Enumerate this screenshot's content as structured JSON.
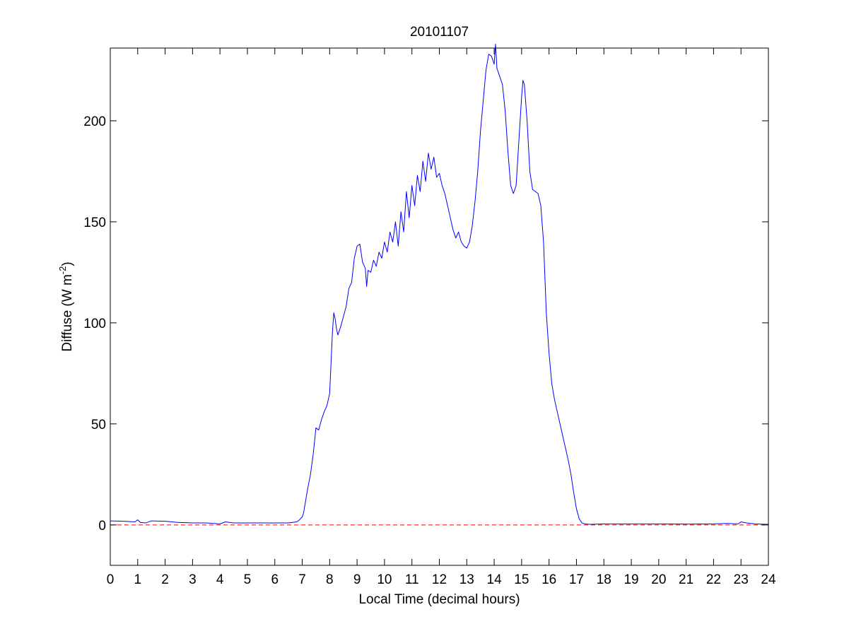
{
  "chart_data": {
    "type": "line",
    "title": "20101107",
    "xlabel": "Local Time (decimal hours)",
    "ylabel": "Diffuse (W m",
    "ylabel_sup": "-2",
    "ylabel_close": ")",
    "xlim": [
      0,
      24
    ],
    "ylim": [
      -20,
      236
    ],
    "xticks": [
      "0",
      "1",
      "2",
      "3",
      "4",
      "5",
      "6",
      "7",
      "8",
      "9",
      "10",
      "11",
      "12",
      "13",
      "14",
      "15",
      "16",
      "17",
      "18",
      "19",
      "20",
      "21",
      "22",
      "23",
      "24"
    ],
    "yticks": [
      "0",
      "50",
      "100",
      "150",
      "200"
    ],
    "grid": false,
    "colors": {
      "series": "#0000ff",
      "reference": "#ff0000"
    },
    "reference_line": {
      "y": 0,
      "style": "dashed"
    },
    "series": [
      {
        "x": [
          0,
          0.5,
          0.9,
          1.0,
          1.1,
          1.3,
          1.5,
          2.0,
          2.5,
          3.0,
          3.5,
          4.0,
          4.2,
          4.5,
          5.0,
          5.5,
          6.0,
          6.5,
          6.8,
          6.9,
          7.0,
          7.05,
          7.1,
          7.2,
          7.3,
          7.4,
          7.5,
          7.6,
          7.7,
          7.8,
          7.9,
          8.0,
          8.05,
          8.1,
          8.15,
          8.2,
          8.25,
          8.3,
          8.4,
          8.5,
          8.6,
          8.7,
          8.8,
          8.9,
          9.0,
          9.1,
          9.2,
          9.3,
          9.35,
          9.4,
          9.5,
          9.6,
          9.7,
          9.8,
          9.9,
          10.0,
          10.1,
          10.2,
          10.3,
          10.4,
          10.5,
          10.6,
          10.7,
          10.8,
          10.9,
          11.0,
          11.1,
          11.2,
          11.3,
          11.4,
          11.5,
          11.6,
          11.7,
          11.8,
          11.9,
          12.0,
          12.1,
          12.2,
          12.3,
          12.4,
          12.5,
          12.6,
          12.7,
          12.8,
          12.9,
          13.0,
          13.1,
          13.2,
          13.3,
          13.4,
          13.5,
          13.6,
          13.7,
          13.8,
          13.9,
          14.0,
          14.05,
          14.1,
          14.2,
          14.3,
          14.4,
          14.5,
          14.6,
          14.7,
          14.8,
          14.9,
          15.0,
          15.05,
          15.1,
          15.2,
          15.3,
          15.4,
          15.5,
          15.6,
          15.7,
          15.8,
          15.9,
          16.0,
          16.1,
          16.2,
          16.3,
          16.4,
          16.5,
          16.6,
          16.7,
          16.8,
          16.9,
          17.0,
          17.1,
          17.2,
          17.3,
          17.5,
          18.0,
          19.0,
          20.0,
          21.0,
          22.0,
          22.5,
          22.9,
          23.0,
          23.2,
          23.5,
          24.0
        ],
        "y": [
          2.0,
          1.8,
          1.5,
          2.5,
          1.2,
          1.0,
          2.0,
          1.8,
          1.2,
          1.0,
          1.0,
          0.5,
          1.5,
          1.0,
          1.0,
          1.0,
          1.0,
          1.0,
          1.5,
          2.5,
          4.0,
          6.0,
          10.0,
          18.0,
          25.0,
          35.0,
          48.0,
          47.0,
          52.0,
          56.0,
          59.0,
          65.0,
          80.0,
          95.0,
          105.0,
          102.0,
          97.0,
          94.0,
          98.0,
          103.0,
          108.0,
          117.0,
          120.0,
          132.0,
          138.0,
          139.0,
          130.0,
          127.0,
          118.0,
          126.0,
          125.0,
          131.0,
          128.0,
          135.0,
          132.0,
          140.0,
          135.0,
          145.0,
          140.0,
          150.0,
          138.0,
          155.0,
          145.0,
          165.0,
          152.0,
          168.0,
          158.0,
          173.0,
          165.0,
          180.0,
          170.0,
          184.0,
          176.0,
          182.0,
          172.0,
          174.0,
          168.0,
          164.0,
          158.0,
          152.0,
          146.0,
          142.0,
          145.0,
          140.0,
          138.0,
          137.0,
          140.0,
          148.0,
          160.0,
          175.0,
          195.0,
          210.0,
          225.0,
          233.0,
          232.0,
          228.0,
          238.0,
          226.0,
          222.0,
          218.0,
          205.0,
          185.0,
          168.0,
          164.0,
          168.0,
          190.0,
          212.0,
          220.0,
          218.0,
          200.0,
          175.0,
          166.0,
          165.0,
          164.0,
          158.0,
          140.0,
          105.0,
          85.0,
          70.0,
          62.0,
          56.0,
          50.0,
          44.0,
          38.0,
          32.0,
          25.0,
          16.0,
          8.0,
          3.0,
          1.0,
          0.5,
          0.3,
          0.5,
          0.5,
          0.5,
          0.4,
          0.5,
          0.7,
          0.5,
          1.5,
          1.0,
          0.5,
          0.3
        ]
      }
    ]
  }
}
